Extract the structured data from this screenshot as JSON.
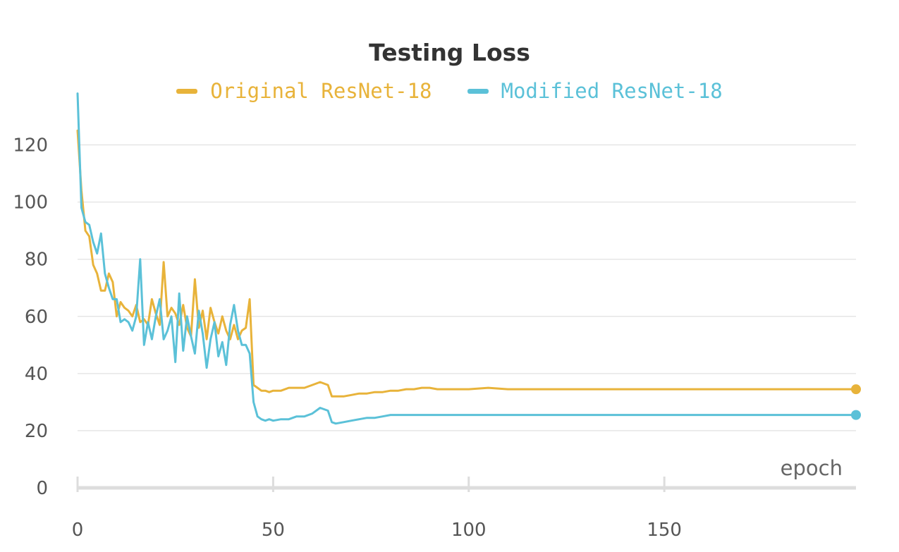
{
  "chart_data": {
    "type": "line",
    "title": "Testing Loss",
    "xlabel": "epoch",
    "ylabel": "",
    "xlim": [
      0,
      199
    ],
    "ylim": [
      0,
      130
    ],
    "x_ticks": [
      0,
      50,
      100,
      150
    ],
    "y_ticks": [
      0,
      20,
      40,
      60,
      80,
      100,
      120
    ],
    "grid": true,
    "legend_position": "top-center",
    "series": [
      {
        "name": "Original ResNet-18",
        "color": "#e8b33a",
        "x": [
          0,
          1,
          2,
          3,
          4,
          5,
          6,
          7,
          8,
          9,
          10,
          11,
          12,
          13,
          14,
          15,
          16,
          17,
          18,
          19,
          20,
          21,
          22,
          23,
          24,
          25,
          26,
          27,
          28,
          29,
          30,
          31,
          32,
          33,
          34,
          35,
          36,
          37,
          38,
          39,
          40,
          41,
          42,
          43,
          44,
          45,
          46,
          47,
          48,
          49,
          50,
          52,
          54,
          56,
          58,
          60,
          62,
          64,
          65,
          66,
          68,
          70,
          72,
          74,
          76,
          78,
          80,
          82,
          84,
          86,
          88,
          90,
          92,
          95,
          100,
          105,
          110,
          115,
          120,
          125,
          130,
          135,
          140,
          145,
          150,
          155,
          160,
          165,
          170,
          175,
          180,
          185,
          190,
          195,
          199
        ],
        "values": [
          125,
          104,
          90,
          88,
          78,
          75,
          69,
          69,
          75,
          72,
          60,
          65,
          63,
          62,
          60,
          64,
          58,
          59,
          57,
          66,
          61,
          57,
          79,
          60,
          63,
          61,
          57,
          64,
          56,
          53,
          73,
          56,
          62,
          52,
          63,
          58,
          54,
          60,
          55,
          52,
          57,
          52,
          55,
          56,
          66,
          36,
          35,
          34,
          34,
          33.5,
          34,
          34,
          35,
          35,
          35,
          36,
          37,
          36,
          32,
          32,
          32,
          32.5,
          33,
          33,
          33.5,
          33.5,
          34,
          34,
          34.5,
          34.5,
          35,
          35,
          34.5,
          34.5,
          34.5,
          35,
          34.5,
          34.5,
          34.5,
          34.5,
          34.5,
          34.5,
          34.5,
          34.5,
          34.5,
          34.5,
          34.5,
          34.5,
          34.5,
          34.5,
          34.5,
          34.5,
          34.5,
          34.5,
          34.5
        ]
      },
      {
        "name": "Modified ResNet-18",
        "color": "#5bc1d8",
        "x": [
          0,
          1,
          2,
          3,
          4,
          5,
          6,
          7,
          8,
          9,
          10,
          11,
          12,
          13,
          14,
          15,
          16,
          17,
          18,
          19,
          20,
          21,
          22,
          23,
          24,
          25,
          26,
          27,
          28,
          29,
          30,
          31,
          32,
          33,
          34,
          35,
          36,
          37,
          38,
          39,
          40,
          41,
          42,
          43,
          44,
          45,
          46,
          47,
          48,
          49,
          50,
          52,
          54,
          56,
          58,
          60,
          62,
          64,
          65,
          66,
          68,
          70,
          72,
          74,
          76,
          78,
          80,
          82,
          84,
          86,
          88,
          90,
          92,
          95,
          100,
          105,
          110,
          115,
          120,
          125,
          130,
          135,
          140,
          145,
          150,
          155,
          160,
          165,
          170,
          175,
          180,
          185,
          190,
          195,
          199
        ],
        "values": [
          138,
          98,
          93,
          92,
          86,
          82,
          89,
          75,
          70,
          66,
          66,
          58,
          59,
          58,
          55,
          60,
          80,
          50,
          58,
          52,
          60,
          66,
          52,
          55,
          60,
          44,
          68,
          48,
          60,
          53,
          47,
          62,
          54,
          42,
          52,
          58,
          46,
          51,
          43,
          57,
          64,
          55,
          50,
          50,
          47,
          30,
          25,
          24,
          23.5,
          24,
          23.5,
          24,
          24,
          25,
          25,
          26,
          28,
          27,
          23,
          22.5,
          23,
          23.5,
          24,
          24.5,
          24.5,
          25,
          25.5,
          25.5,
          25.5,
          25.5,
          25.5,
          25.5,
          25.5,
          25.5,
          25.5,
          25.5,
          25.5,
          25.5,
          25.5,
          25.5,
          25.5,
          25.5,
          25.5,
          25.5,
          25.5,
          25.5,
          25.5,
          25.5,
          25.5,
          25.5,
          25.5,
          25.5,
          25.5,
          25.5,
          25.5
        ]
      }
    ]
  }
}
